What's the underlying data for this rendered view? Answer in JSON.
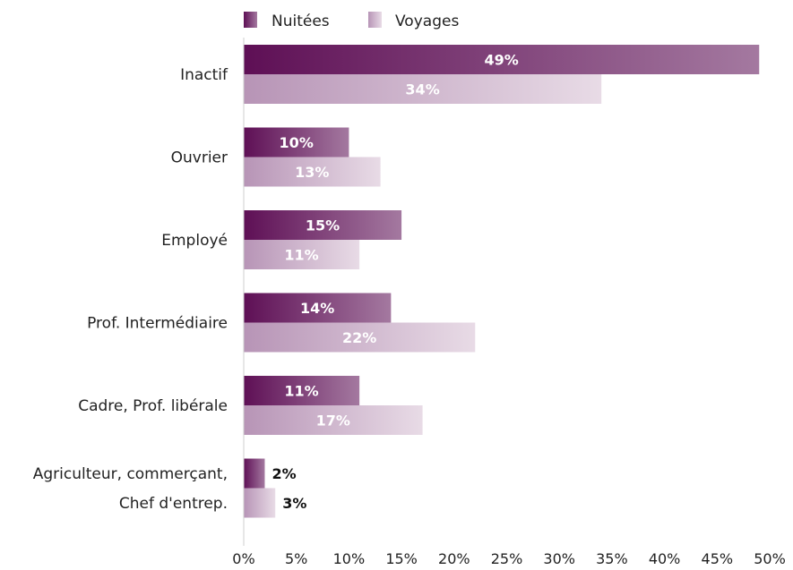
{
  "chart_data": {
    "type": "bar",
    "orientation": "horizontal",
    "categories": [
      [
        "Inactif"
      ],
      [
        "Ouvrier"
      ],
      [
        "Employé"
      ],
      [
        "Prof. Intermédiaire"
      ],
      [
        "Cadre, Prof. libérale"
      ],
      [
        "Agriculteur, commerçant,",
        "Chef d'entrep."
      ]
    ],
    "series": [
      {
        "name": "Nuitées",
        "values": [
          49,
          10,
          15,
          14,
          11,
          2
        ],
        "labels": [
          "49%",
          "10%",
          "15%",
          "14%",
          "11%",
          "2%"
        ],
        "color": "#6a1a5e"
      },
      {
        "name": "Voyages",
        "values": [
          34,
          13,
          11,
          22,
          17,
          3
        ],
        "labels": [
          "34%",
          "13%",
          "11%",
          "22%",
          "17%",
          "3%"
        ],
        "color": "#c9b0c9"
      }
    ],
    "xlim": [
      0,
      50
    ],
    "xticks": [
      0,
      5,
      10,
      15,
      20,
      25,
      30,
      35,
      40,
      45,
      50
    ],
    "xtick_labels": [
      "0%",
      "5%",
      "10%",
      "15%",
      "20%",
      "25%",
      "30%",
      "35%",
      "40%",
      "45%",
      "50%"
    ],
    "legend_position": "top",
    "grid": false
  }
}
